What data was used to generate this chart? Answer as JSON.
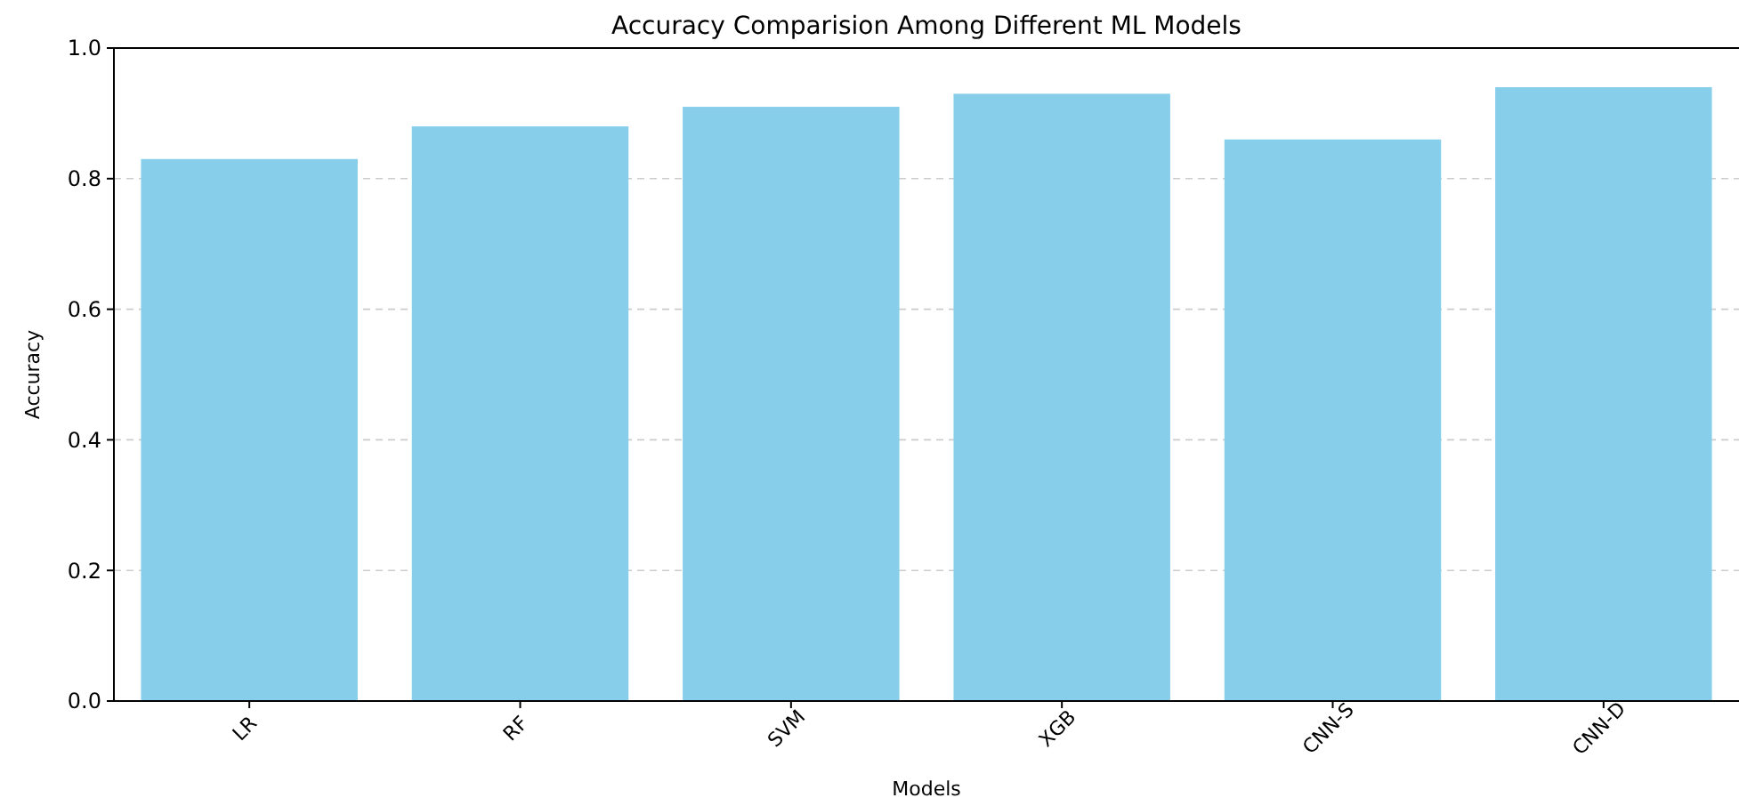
{
  "chart_data": {
    "type": "bar",
    "title": "Accuracy Comparision Among Different ML Models",
    "xlabel": "Models",
    "ylabel": "Accuracy",
    "categories": [
      "LR",
      "RF",
      "SVM",
      "XGB",
      "CNN-S",
      "CNN-D"
    ],
    "values": [
      0.83,
      0.88,
      0.91,
      0.93,
      0.86,
      0.94
    ],
    "color": "#87ceeb",
    "ylim": [
      0,
      1
    ],
    "yticks": [
      {
        "value": 0,
        "label": "0.0"
      },
      {
        "value": 0.2,
        "label": "0.2"
      },
      {
        "value": 0.4,
        "label": "0.4"
      },
      {
        "value": 0.6,
        "label": "0.6"
      },
      {
        "value": 0.8,
        "label": "0.8"
      },
      {
        "value": 1,
        "label": "1.0"
      }
    ],
    "grid": "y"
  }
}
